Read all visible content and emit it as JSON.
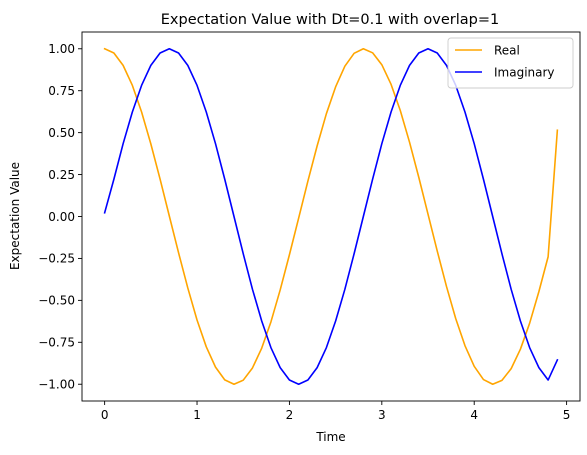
{
  "chart_data": {
    "type": "line",
    "title": "Expectation Value with Dt=0.1 with overlap=1",
    "xlabel": "Time",
    "ylabel": "Expectation Value",
    "xlim": [
      -0.245,
      5.145
    ],
    "ylim": [
      -1.1,
      1.1
    ],
    "xticks": [
      0,
      1,
      2,
      3,
      4,
      5
    ],
    "yticks": [
      -1.0,
      -0.75,
      -0.5,
      -0.25,
      0.0,
      0.25,
      0.5,
      0.75,
      1.0
    ],
    "xtick_labels": [
      "0",
      "1",
      "2",
      "3",
      "4",
      "5"
    ],
    "ytick_labels": [
      "−1.00",
      "−0.75",
      "−0.50",
      "−0.25",
      "0.00",
      "0.25",
      "0.50",
      "0.75",
      "1.00"
    ],
    "grid": false,
    "legend_position": "top-right",
    "x": [
      0.0,
      0.1,
      0.2,
      0.3,
      0.4,
      0.5,
      0.6,
      0.7,
      0.8,
      0.9,
      1.0,
      1.1,
      1.2,
      1.3,
      1.4,
      1.5,
      1.6,
      1.7,
      1.8,
      1.9,
      2.0,
      2.1,
      2.2,
      2.3,
      2.4,
      2.5,
      2.6,
      2.7,
      2.8,
      2.9,
      3.0,
      3.1,
      3.2,
      3.3,
      3.4,
      3.5,
      3.6,
      3.7,
      3.8,
      3.9,
      4.0,
      4.1,
      4.2,
      4.3,
      4.4,
      4.5,
      4.6,
      4.7,
      4.8,
      4.9
    ],
    "series": [
      {
        "name": "Real",
        "color": "#ffa500",
        "values": [
          1.0,
          0.975,
          0.901,
          0.782,
          0.623,
          0.433,
          0.223,
          0.003,
          -0.216,
          -0.426,
          -0.617,
          -0.777,
          -0.898,
          -0.974,
          -1.0,
          -0.976,
          -0.903,
          -0.785,
          -0.628,
          -0.438,
          -0.228,
          -0.009,
          0.211,
          0.421,
          0.613,
          0.773,
          0.896,
          0.973,
          1.0,
          0.976,
          0.905,
          0.788,
          0.632,
          0.443,
          0.234,
          0.014,
          -0.206,
          -0.417,
          -0.609,
          -0.77,
          -0.893,
          -0.972,
          -1.0,
          -0.977,
          -0.907,
          -0.791,
          -0.636,
          -0.448,
          -0.24,
          0.514
        ]
      },
      {
        "name": "Imaginary",
        "color": "#0000ff",
        "values": [
          0.022,
          0.222,
          0.434,
          0.623,
          0.782,
          0.901,
          0.975,
          1.0,
          0.975,
          0.901,
          0.782,
          0.623,
          0.434,
          0.222,
          0.0,
          -0.222,
          -0.434,
          -0.623,
          -0.782,
          -0.901,
          -0.975,
          -1.0,
          -0.975,
          -0.901,
          -0.782,
          -0.623,
          -0.434,
          -0.222,
          0.0,
          0.222,
          0.434,
          0.623,
          0.782,
          0.901,
          0.975,
          1.0,
          0.975,
          0.901,
          0.782,
          0.623,
          0.434,
          0.222,
          0.0,
          -0.222,
          -0.434,
          -0.623,
          -0.782,
          -0.901,
          -0.975,
          -0.855
        ]
      }
    ]
  }
}
